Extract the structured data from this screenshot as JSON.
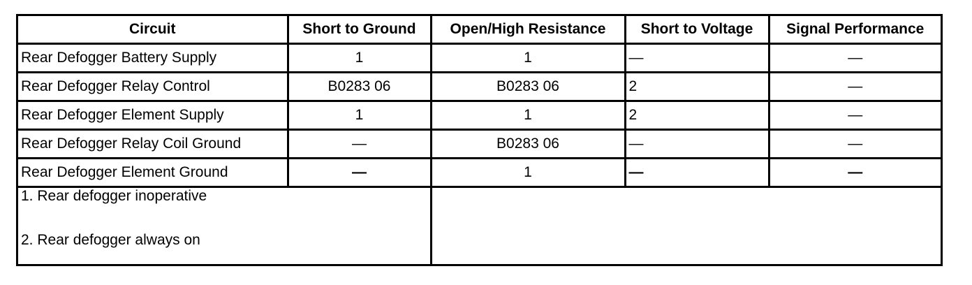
{
  "table": {
    "headers": [
      "Circuit",
      "Short to Ground",
      "Open/High Resistance",
      "Short to Voltage",
      "Signal Performance"
    ],
    "rows": [
      [
        "Rear Defogger Battery Supply",
        "1",
        "1",
        "—",
        "—"
      ],
      [
        "Rear Defogger Relay Control",
        "B0283 06",
        "B0283 06",
        "2",
        "—"
      ],
      [
        "Rear Defogger Element Supply",
        "1",
        "1",
        "2",
        "—"
      ],
      [
        "Rear Defogger Relay Coil Ground",
        "—",
        "B0283 06",
        "—",
        "—"
      ],
      [
        "Rear Defogger Element Ground",
        "—",
        "1",
        "—",
        "—"
      ]
    ],
    "notes": [
      "1. Rear defogger inoperative",
      "2. Rear defogger always on"
    ]
  }
}
